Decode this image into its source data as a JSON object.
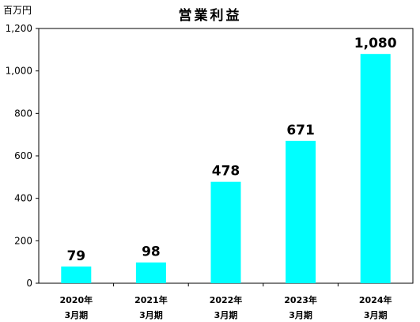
{
  "chart_data": {
    "type": "bar",
    "title": "営業利益",
    "unit_label": "百万円",
    "categories": [
      {
        "line1": "2020年",
        "line2": "3月期"
      },
      {
        "line1": "2021年",
        "line2": "3月期"
      },
      {
        "line1": "2022年",
        "line2": "3月期"
      },
      {
        "line1": "2023年",
        "line2": "3月期"
      },
      {
        "line1": "2024年",
        "line2": "3月期"
      }
    ],
    "values": [
      79,
      98,
      478,
      671,
      1080
    ],
    "value_labels": [
      "79",
      "98",
      "478",
      "671",
      "1,080"
    ],
    "y_ticks": [
      0,
      200,
      400,
      600,
      800,
      1000,
      1200
    ],
    "y_tick_labels": [
      "0",
      "200",
      "400",
      "600",
      "800",
      "1,000",
      "1,200"
    ],
    "ylim": [
      0,
      1200
    ],
    "grid": false,
    "legend": "none",
    "bar_color": "#00FFFF",
    "axis_color": "#000000"
  }
}
